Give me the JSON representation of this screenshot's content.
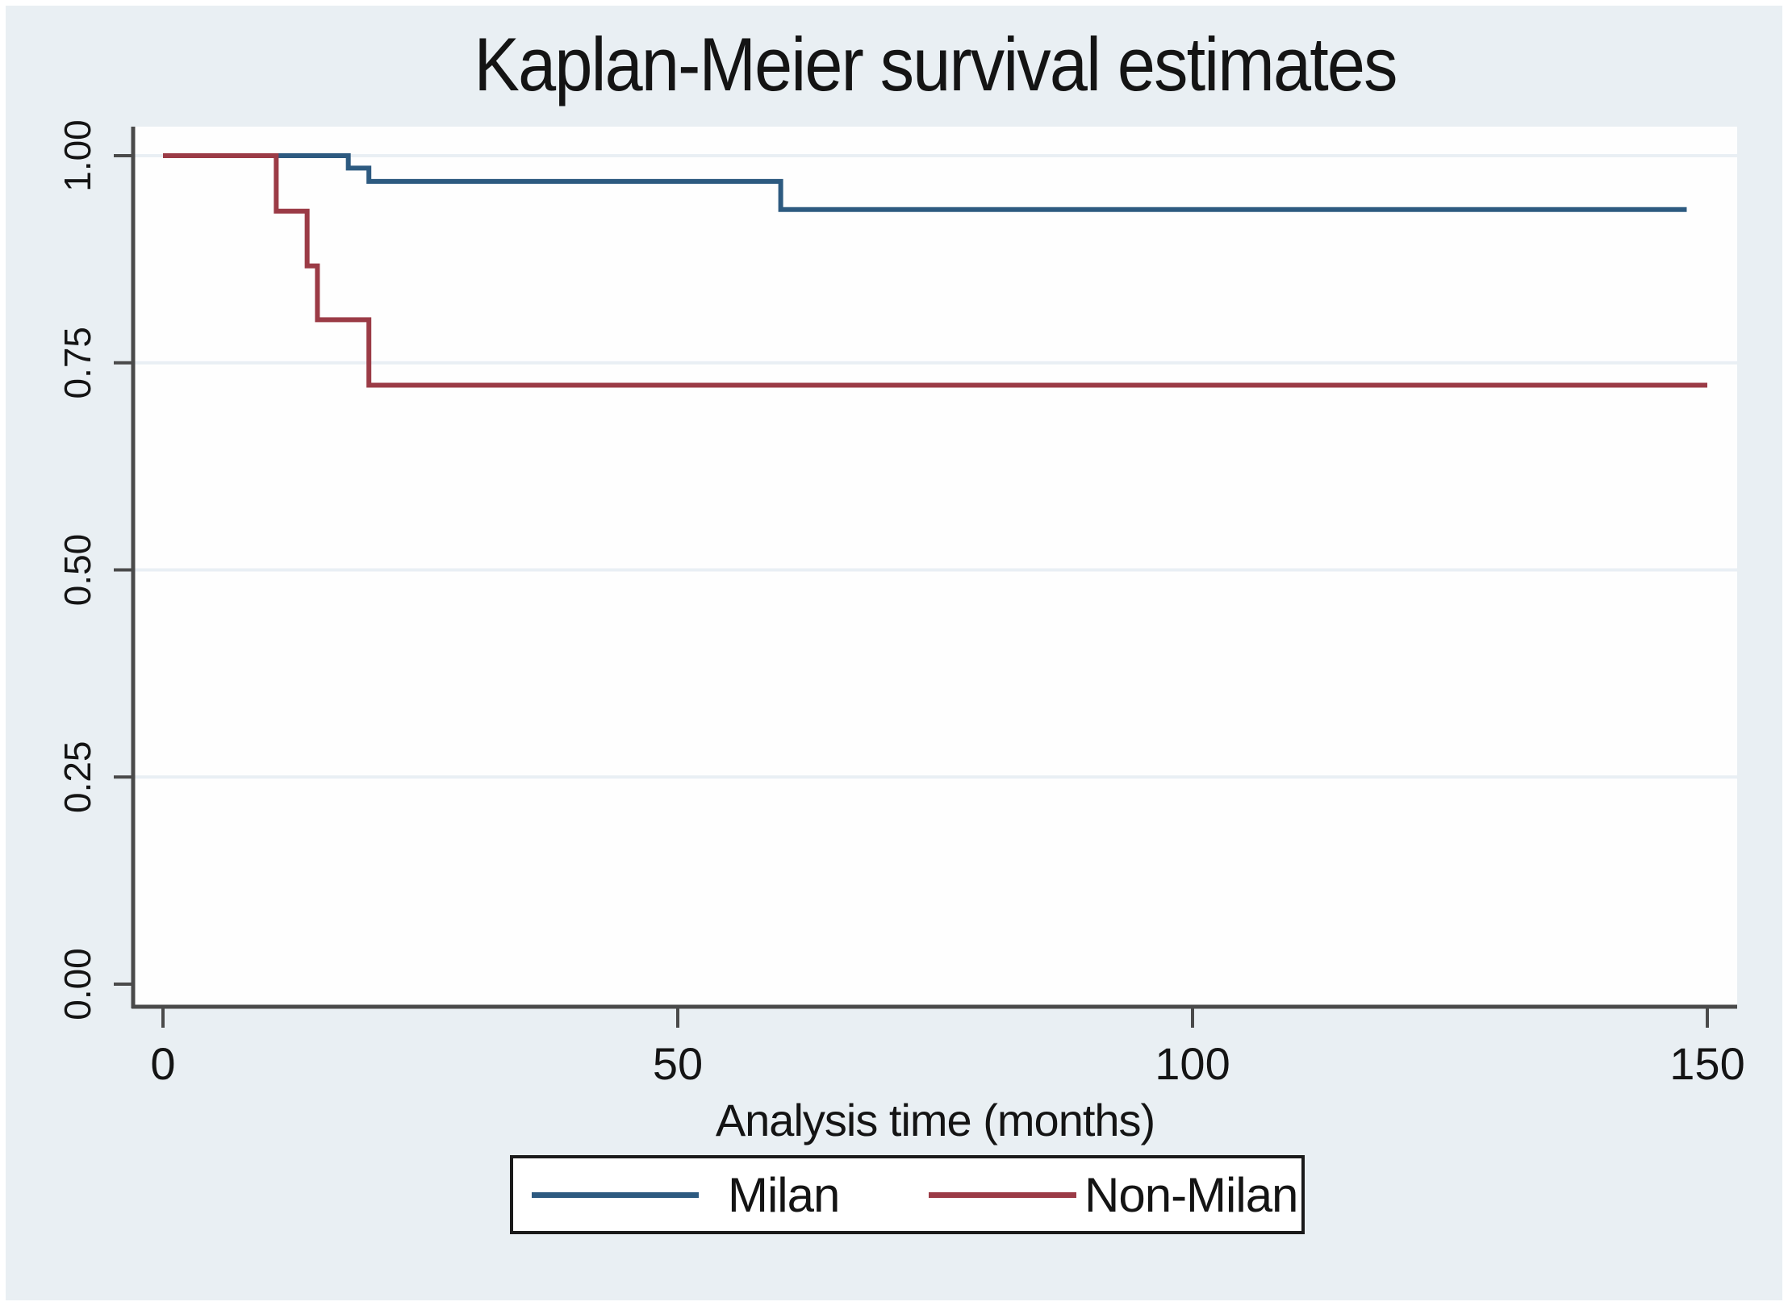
{
  "title": "Kaplan-Meier survival estimates",
  "colors": {
    "background": "#e9eff3",
    "plot_background": "#fefefe",
    "grid": "#e9eff4",
    "axis": "#4a4a4a",
    "text": "#141414",
    "legend_border": "#1a1a1a",
    "legend_background": "#ffffff"
  },
  "x_axis": {
    "label": "Analysis time (months)",
    "tick_labels": [
      "0",
      "50",
      "100",
      "150"
    ]
  },
  "y_axis": {
    "tick_labels": [
      "0.00",
      "0.25",
      "0.50",
      "0.75",
      "1.00"
    ]
  },
  "chart_data": {
    "type": "line",
    "subtype": "kaplan-meier-step",
    "title": "Kaplan-Meier survival estimates",
    "xlabel": "Analysis time (months)",
    "ylabel": "",
    "x_ticks": [
      0,
      50,
      100,
      150
    ],
    "y_ticks": [
      0,
      0.25,
      0.5,
      0.75,
      1
    ],
    "y_tick_labels": [
      "0.00",
      "0.25",
      "0.50",
      "0.75",
      "1.00"
    ],
    "xlim": [
      0,
      153
    ],
    "ylim": [
      0,
      1.03
    ],
    "grid": "horizontal-only",
    "legend_position": "bottom-center",
    "series": [
      {
        "name": "Milan",
        "color": "#2d5a80",
        "start": [
          0,
          1.0
        ],
        "steps": [
          [
            18,
            0.985
          ],
          [
            20,
            0.969
          ],
          [
            60,
            0.935
          ]
        ],
        "end_time": 148
      },
      {
        "name": "Non-Milan",
        "color": "#9b3b46",
        "start": [
          0,
          1.0
        ],
        "steps": [
          [
            11,
            0.933
          ],
          [
            14,
            0.867
          ],
          [
            15,
            0.802
          ],
          [
            20,
            0.723
          ]
        ],
        "end_time": 150
      }
    ]
  }
}
